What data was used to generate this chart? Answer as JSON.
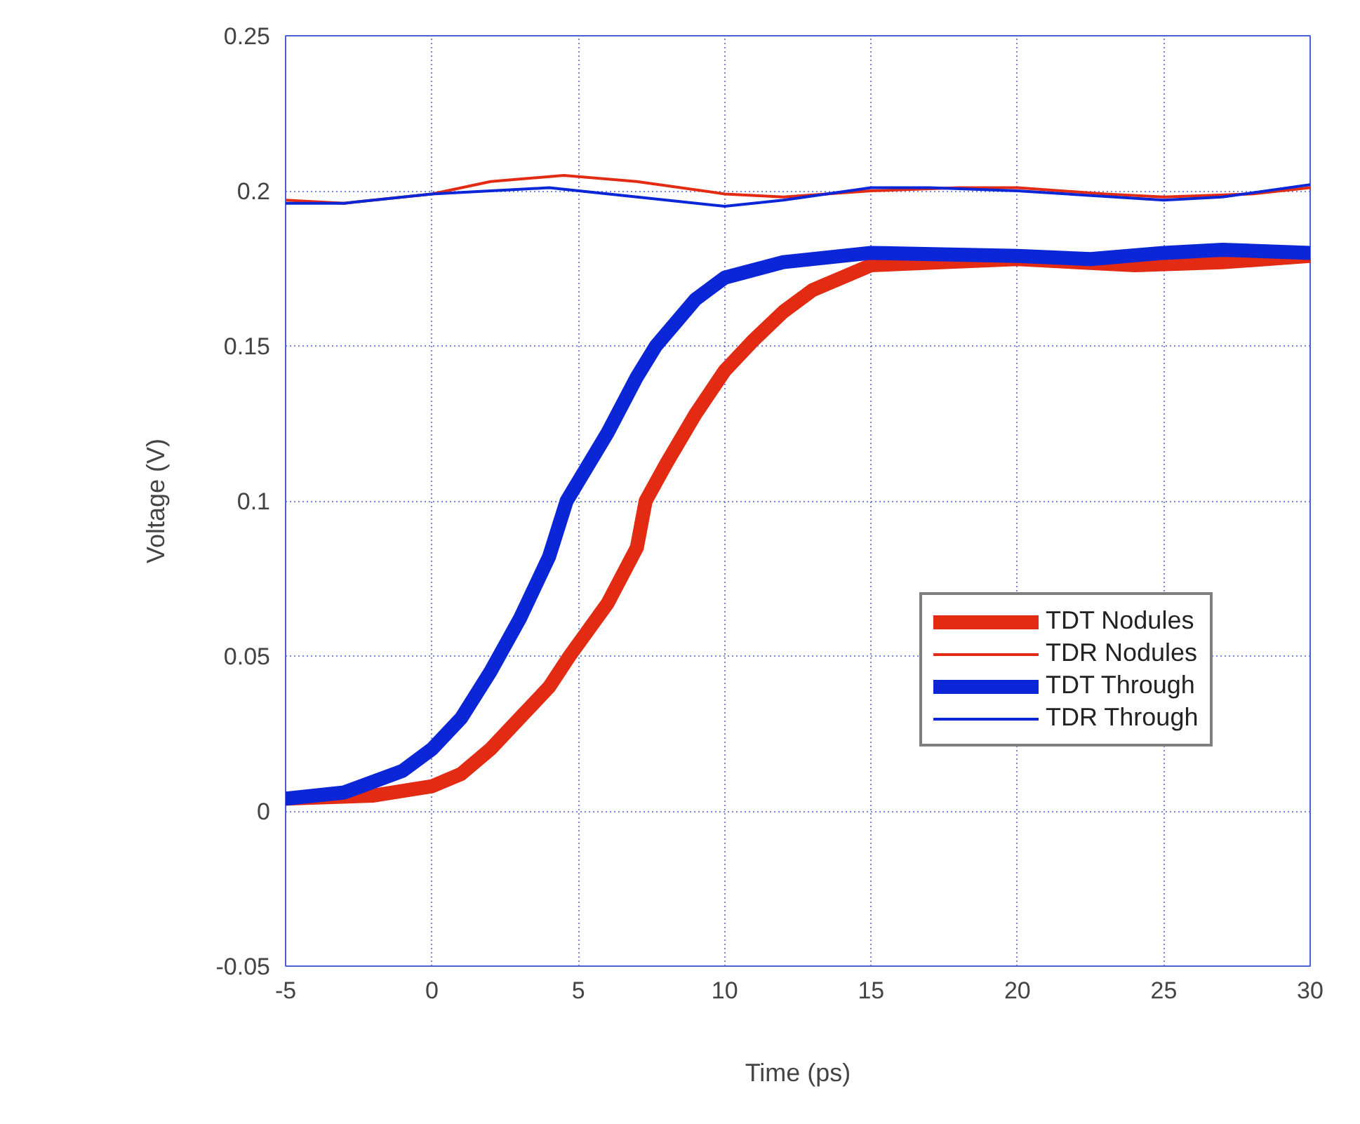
{
  "chart_data": {
    "type": "line",
    "xlabel": "Time (ps)",
    "ylabel": "Voltage (V)",
    "xlim": [
      -5,
      30
    ],
    "ylim": [
      -0.05,
      0.25
    ],
    "xticks": [
      -5,
      0,
      5,
      10,
      15,
      20,
      25,
      30
    ],
    "yticks": [
      -0.05,
      0,
      0.05,
      0.1,
      0.15,
      0.2,
      0.25
    ],
    "grid": true,
    "legend": "right",
    "series": [
      {
        "name": "TDT Nodules",
        "color": "#e32a12",
        "x": [
          -5,
          -2,
          0,
          1,
          2,
          3,
          4,
          4.7,
          6,
          7,
          7.3,
          8,
          9,
          10,
          11,
          12,
          13,
          15,
          20,
          24,
          27,
          30
        ],
        "values": [
          0.004,
          0.005,
          0.008,
          0.012,
          0.02,
          0.03,
          0.04,
          0.05,
          0.067,
          0.085,
          0.1,
          0.112,
          0.128,
          0.142,
          0.152,
          0.161,
          0.168,
          0.176,
          0.178,
          0.176,
          0.177,
          0.179
        ]
      },
      {
        "name": "TDR Nodules",
        "color": "#e32a12",
        "x": [
          -5,
          -3,
          0,
          2,
          4.5,
          7,
          10,
          12,
          15,
          18,
          20,
          23,
          25,
          28,
          30
        ],
        "values": [
          0.197,
          0.196,
          0.199,
          0.203,
          0.205,
          0.203,
          0.199,
          0.198,
          0.2,
          0.201,
          0.201,
          0.199,
          0.198,
          0.199,
          0.201
        ]
      },
      {
        "name": "TDT Through",
        "color": "#0a26d6",
        "x": [
          -5,
          -3,
          -1,
          0,
          1,
          2,
          3,
          4,
          4.6,
          6,
          7,
          7.65,
          9,
          10,
          12,
          15,
          20,
          22.5,
          25,
          27,
          30
        ],
        "values": [
          0.004,
          0.006,
          0.013,
          0.02,
          0.03,
          0.045,
          0.062,
          0.082,
          0.1,
          0.122,
          0.14,
          0.15,
          0.165,
          0.172,
          0.177,
          0.18,
          0.179,
          0.178,
          0.18,
          0.181,
          0.18
        ]
      },
      {
        "name": "TDR Through",
        "color": "#0a26d6",
        "x": [
          -5,
          -3,
          0,
          2,
          4,
          7,
          10,
          12,
          15,
          17,
          20,
          25,
          27,
          30
        ],
        "values": [
          0.196,
          0.196,
          0.199,
          0.2,
          0.201,
          0.198,
          0.195,
          0.197,
          0.201,
          0.201,
          0.2,
          0.197,
          0.198,
          0.202
        ]
      }
    ]
  }
}
